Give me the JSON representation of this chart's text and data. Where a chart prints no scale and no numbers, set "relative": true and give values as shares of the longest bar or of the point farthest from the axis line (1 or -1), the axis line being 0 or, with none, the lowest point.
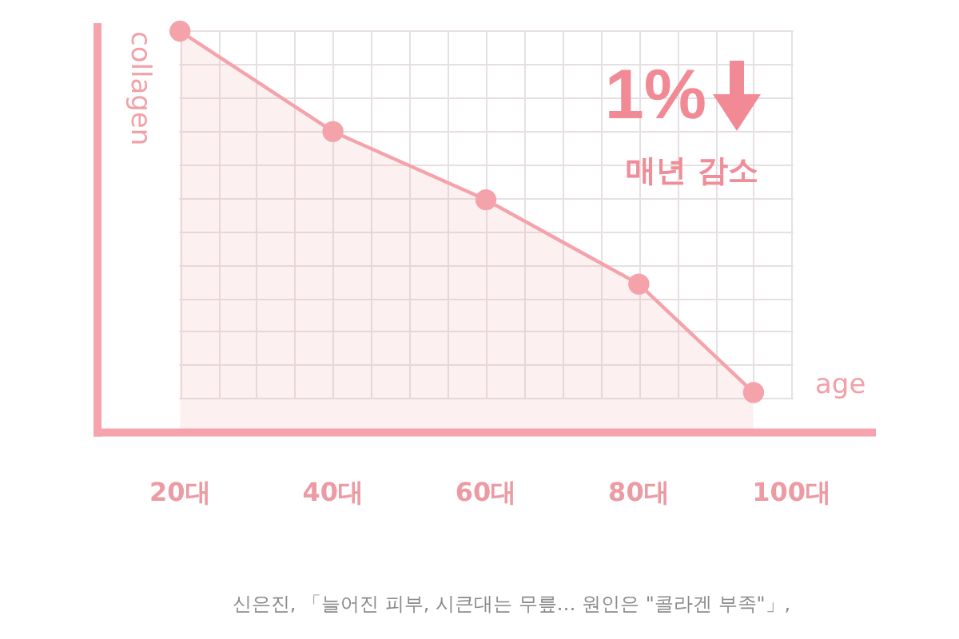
{
  "chart_data": {
    "type": "area",
    "xlabel": "age",
    "ylabel": "collagen",
    "annotations": [
      "1%",
      "매년 감소",
      "신은진, 「늘어진 피부, 시큰대는 무릎… 원인은 \"콜라겐 부족\"」,"
    ],
    "x": [
      20,
      40,
      60,
      80,
      95
    ],
    "values": [
      1,
      0.75,
      0.58,
      0.37,
      0.1
    ],
    "color": "#f4a3ab",
    "relative": true,
    "xlim": [
      9,
      111
    ],
    "xticks": [
      {
        "value": 20,
        "label": "20대"
      },
      {
        "value": 25,
        "label": null
      },
      {
        "value": 30,
        "label": null
      },
      {
        "value": 35,
        "label": null
      },
      {
        "value": 40,
        "label": "40대"
      },
      {
        "value": 45,
        "label": null
      },
      {
        "value": 50,
        "label": null
      },
      {
        "value": 55,
        "label": null
      },
      {
        "value": 60,
        "label": "60대"
      },
      {
        "value": 65,
        "label": null
      },
      {
        "value": 70,
        "label": null
      },
      {
        "value": 75,
        "label": null
      },
      {
        "value": 80,
        "label": "80대"
      },
      {
        "value": 85,
        "label": null
      },
      {
        "value": 90,
        "label": null
      },
      {
        "value": 95,
        "label": null
      },
      {
        "value": 100,
        "label": "100대"
      }
    ],
    "grid": true,
    "marker": "circle",
    "line_style": "solid",
    "tick_labels": "x"
  }
}
